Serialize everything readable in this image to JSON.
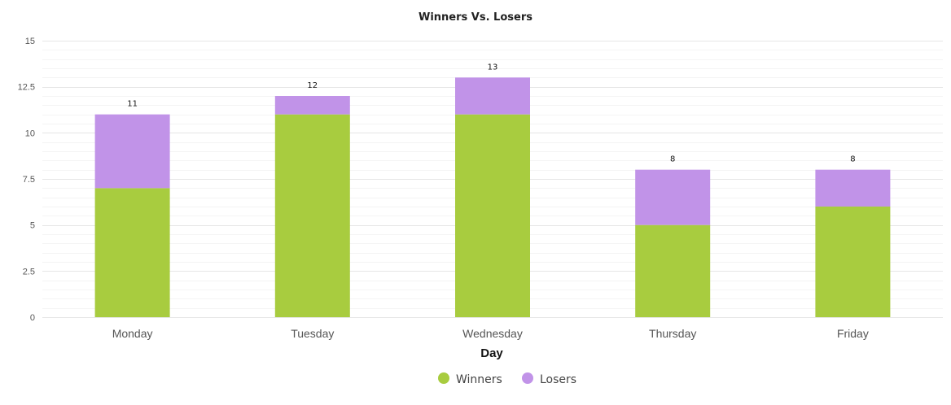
{
  "chart_data": {
    "type": "bar",
    "stacked": true,
    "title": "Winners Vs. Losers",
    "xlabel": "Day",
    "ylabel": "",
    "categories": [
      "Monday",
      "Tuesday",
      "Wednesday",
      "Thursday",
      "Friday"
    ],
    "series": [
      {
        "name": "Winners",
        "values": [
          7,
          11,
          11,
          5,
          6
        ],
        "color": "#a8cc3f"
      },
      {
        "name": "Losers",
        "values": [
          4,
          1,
          2,
          3,
          2
        ],
        "color": "#c193e8"
      }
    ],
    "totals": [
      11,
      12,
      13,
      8,
      8
    ],
    "ylim": [
      0,
      15
    ],
    "yticks": [
      0,
      2.5,
      5,
      7.5,
      10,
      12.5,
      15
    ],
    "ytick_labels": [
      "0",
      "2.5",
      "5",
      "7.5",
      "10",
      "12.5",
      "15"
    ],
    "grid": true,
    "legend": {
      "position": "bottom-center"
    }
  }
}
